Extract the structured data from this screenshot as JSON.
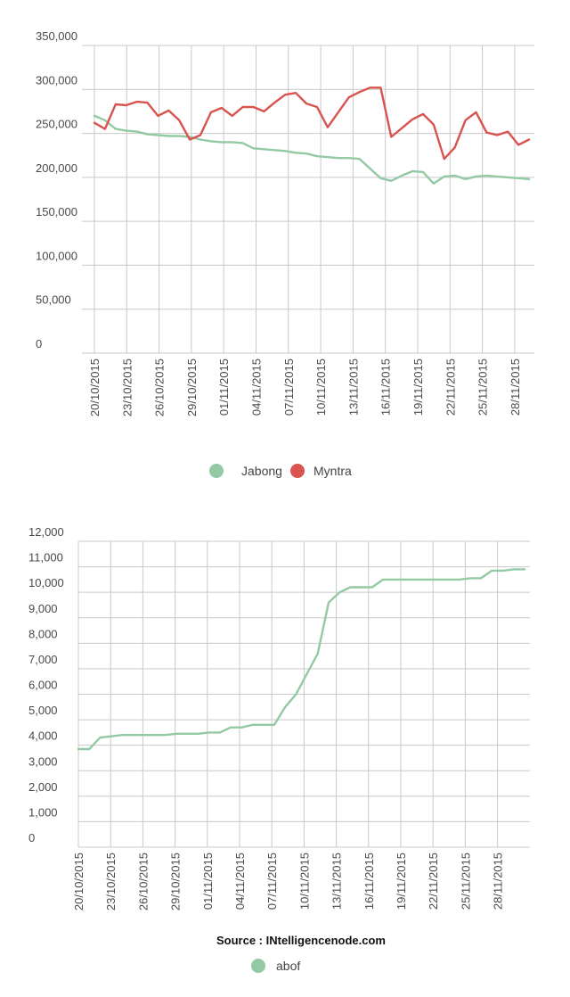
{
  "chart_data": [
    {
      "type": "line",
      "x": [
        "20/10/2015",
        "21/10/2015",
        "22/10/2015",
        "23/10/2015",
        "24/10/2015",
        "25/10/2015",
        "26/10/2015",
        "27/10/2015",
        "28/10/2015",
        "29/10/2015",
        "30/10/2015",
        "31/10/2015",
        "01/11/2015",
        "02/11/2015",
        "03/11/2015",
        "04/11/2015",
        "05/11/2015",
        "06/11/2015",
        "07/11/2015",
        "08/11/2015",
        "09/11/2015",
        "10/11/2015",
        "11/11/2015",
        "12/11/2015",
        "13/11/2015",
        "14/11/2015",
        "15/11/2015",
        "16/11/2015",
        "17/11/2015",
        "18/11/2015",
        "19/11/2015",
        "20/11/2015",
        "21/11/2015",
        "22/11/2015",
        "23/11/2015",
        "24/11/2015",
        "25/11/2015",
        "26/11/2015",
        "27/11/2015",
        "28/11/2015",
        "29/11/2015",
        "30/11/2015"
      ],
      "x_tick_labels": [
        "20/10/2015",
        "23/10/2015",
        "26/10/2015",
        "29/10/2015",
        "01/11/2015",
        "04/11/2015",
        "07/11/2015",
        "10/11/2015",
        "13/11/2015",
        "16/11/2015",
        "19/11/2015",
        "22/11/2015",
        "25/11/2015",
        "28/11/2015"
      ],
      "y_tick_labels": [
        "0",
        "50,000",
        "100,000",
        "150,000",
        "200,000",
        "250,000",
        "300,000",
        "350,000"
      ],
      "ylim": [
        0,
        350000
      ],
      "grid": true,
      "legend_position": "bottom-center",
      "series": [
        {
          "name": "Jabong",
          "color": "#93c9a3",
          "values": [
            270000,
            265000,
            255000,
            253000,
            252000,
            249000,
            248000,
            247000,
            247000,
            246000,
            243000,
            241000,
            240000,
            240000,
            239000,
            233000,
            232000,
            231000,
            230000,
            228000,
            227000,
            224000,
            223000,
            222000,
            222000,
            221000,
            210000,
            199000,
            196000,
            202000,
            207000,
            206000,
            193000,
            201000,
            202000,
            198000,
            201000,
            202000,
            201000,
            200000,
            199000,
            198000
          ]
        },
        {
          "name": "Myntra",
          "color": "#d9534f",
          "values": [
            262000,
            255000,
            283000,
            282000,
            286000,
            285000,
            270000,
            276000,
            265000,
            243000,
            248000,
            274000,
            279000,
            270000,
            280000,
            280000,
            275000,
            285000,
            294000,
            296000,
            284000,
            280000,
            257000,
            274000,
            291000,
            297000,
            302000,
            302000,
            246000,
            256000,
            266000,
            272000,
            260000,
            221000,
            234000,
            265000,
            274000,
            251000,
            248000,
            252000,
            237000,
            243000
          ]
        }
      ]
    },
    {
      "type": "line",
      "x": [
        "20/10/2015",
        "21/10/2015",
        "22/10/2015",
        "23/10/2015",
        "24/10/2015",
        "25/10/2015",
        "26/10/2015",
        "27/10/2015",
        "28/10/2015",
        "29/10/2015",
        "30/10/2015",
        "31/10/2015",
        "01/11/2015",
        "02/11/2015",
        "03/11/2015",
        "04/11/2015",
        "05/11/2015",
        "06/11/2015",
        "07/11/2015",
        "08/11/2015",
        "09/11/2015",
        "10/11/2015",
        "11/11/2015",
        "12/11/2015",
        "13/11/2015",
        "14/11/2015",
        "15/11/2015",
        "16/11/2015",
        "17/11/2015",
        "18/11/2015",
        "19/11/2015",
        "20/11/2015",
        "21/11/2015",
        "22/11/2015",
        "23/11/2015",
        "24/11/2015",
        "25/11/2015",
        "26/11/2015",
        "27/11/2015",
        "28/11/2015",
        "29/11/2015",
        "30/11/2015"
      ],
      "x_tick_labels": [
        "20/10/2015",
        "23/10/2015",
        "26/10/2015",
        "29/10/2015",
        "01/11/2015",
        "04/11/2015",
        "07/11/2015",
        "10/11/2015",
        "13/11/2015",
        "16/11/2015",
        "19/11/2015",
        "22/11/2015",
        "25/11/2015",
        "28/11/2015"
      ],
      "y_tick_labels": [
        "0",
        "1,000",
        "2,000",
        "3,000",
        "4,000",
        "5,000",
        "6,000",
        "7,000",
        "8,000",
        "9,000",
        "10,000",
        "11,000",
        "12,000"
      ],
      "ylim": [
        0,
        12000
      ],
      "grid": true,
      "legend_position": "bottom-center",
      "source": "Source : INtelligencenode.com",
      "series": [
        {
          "name": "abof",
          "color": "#93c9a3",
          "values": [
            3850,
            3850,
            4300,
            4350,
            4400,
            4400,
            4400,
            4400,
            4400,
            4450,
            4450,
            4450,
            4500,
            4500,
            4700,
            4700,
            4800,
            4800,
            4800,
            5500,
            6000,
            6800,
            7600,
            9600,
            10000,
            10200,
            10200,
            10200,
            10500,
            10500,
            10500,
            10500,
            10500,
            10500,
            10500,
            10500,
            10550,
            10550,
            10850,
            10850,
            10900,
            10900
          ]
        }
      ]
    }
  ]
}
